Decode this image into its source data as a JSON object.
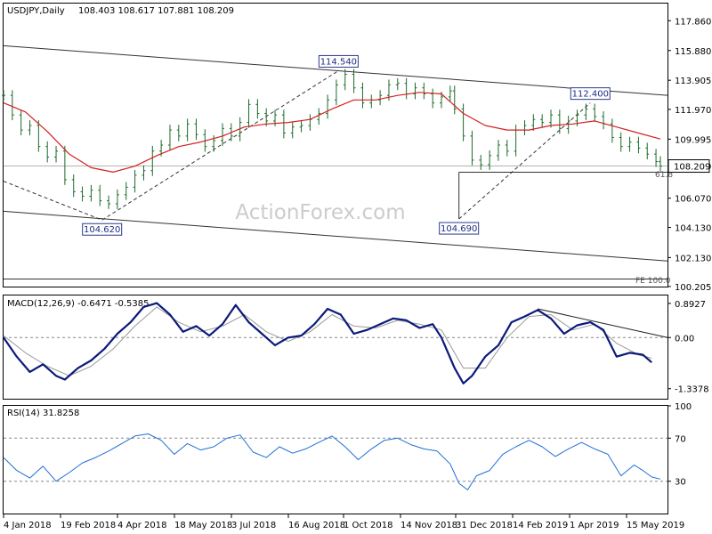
{
  "header": {
    "symbol_line": "USDJPY,Daily",
    "ohlc_line": "108.403 108.617 107.881 108.209"
  },
  "watermark": "ActionForex.com",
  "chart_data": {
    "type": "line",
    "x_ticks": [
      "4 Jan 2018",
      "19 Feb 2018",
      "4 Apr 2018",
      "18 May 2018",
      "3 Jul 2018",
      "16 Aug 2018",
      "1 Oct 2018",
      "14 Nov 2018",
      "31 Dec 2018",
      "14 Feb 2019",
      "1 Apr 2019",
      "15 May 2019"
    ],
    "price_panel": {
      "y_ticks": [
        "117.860",
        "115.880",
        "113.905",
        "111.970",
        "109.995",
        "108.209",
        "106.070",
        "104.130",
        "102.130",
        "100.205"
      ],
      "ylim": [
        100.2,
        119.0
      ],
      "last_price": 108.209,
      "close_points": [
        [
          0,
          112.9
        ],
        [
          4,
          111.6
        ],
        [
          8,
          110.6
        ],
        [
          12,
          110.9
        ],
        [
          16,
          109.5
        ],
        [
          20,
          108.8
        ],
        [
          24,
          109.2
        ],
        [
          28,
          107.3
        ],
        [
          32,
          106.5
        ],
        [
          36,
          106.2
        ],
        [
          40,
          106.6
        ],
        [
          44,
          105.9
        ],
        [
          48,
          105.7
        ],
        [
          52,
          106.3
        ],
        [
          56,
          106.8
        ],
        [
          60,
          107.6
        ],
        [
          64,
          107.9
        ],
        [
          68,
          109.2
        ],
        [
          72,
          109.6
        ],
        [
          76,
          110.6
        ],
        [
          80,
          110.2
        ],
        [
          84,
          111.0
        ],
        [
          88,
          110.3
        ],
        [
          92,
          109.5
        ],
        [
          96,
          109.9
        ],
        [
          100,
          110.7
        ],
        [
          104,
          110.2
        ],
        [
          108,
          111.1
        ],
        [
          112,
          112.3
        ],
        [
          116,
          111.7
        ],
        [
          120,
          111.2
        ],
        [
          124,
          111.6
        ],
        [
          128,
          110.4
        ],
        [
          132,
          110.8
        ],
        [
          136,
          110.9
        ],
        [
          140,
          111.3
        ],
        [
          144,
          111.7
        ],
        [
          148,
          112.6
        ],
        [
          152,
          113.6
        ],
        [
          156,
          114.3
        ],
        [
          160,
          113.4
        ],
        [
          164,
          112.4
        ],
        [
          168,
          112.6
        ],
        [
          172,
          112.9
        ],
        [
          176,
          113.6
        ],
        [
          180,
          113.7
        ],
        [
          184,
          113.0
        ],
        [
          188,
          113.4
        ],
        [
          192,
          113.0
        ],
        [
          196,
          112.4
        ],
        [
          200,
          112.8
        ],
        [
          204,
          113.2
        ],
        [
          206,
          112.0
        ],
        [
          210,
          110.2
        ],
        [
          214,
          108.6
        ],
        [
          218,
          108.3
        ],
        [
          222,
          108.9
        ],
        [
          226,
          109.6
        ],
        [
          230,
          109.2
        ],
        [
          234,
          110.6
        ],
        [
          238,
          110.9
        ],
        [
          242,
          111.3
        ],
        [
          246,
          111.1
        ],
        [
          250,
          111.6
        ],
        [
          254,
          110.7
        ],
        [
          258,
          111.2
        ],
        [
          262,
          111.6
        ],
        [
          266,
          112.0
        ],
        [
          270,
          111.5
        ],
        [
          274,
          111.0
        ],
        [
          278,
          110.1
        ],
        [
          282,
          109.5
        ],
        [
          286,
          109.8
        ],
        [
          290,
          109.4
        ],
        [
          294,
          109.0
        ],
        [
          298,
          108.5
        ],
        [
          300,
          108.2
        ]
      ],
      "ma_points": [
        [
          0,
          112.4
        ],
        [
          10,
          111.8
        ],
        [
          20,
          110.5
        ],
        [
          30,
          109.0
        ],
        [
          40,
          108.1
        ],
        [
          50,
          107.8
        ],
        [
          60,
          108.2
        ],
        [
          70,
          108.9
        ],
        [
          80,
          109.5
        ],
        [
          90,
          109.8
        ],
        [
          100,
          110.2
        ],
        [
          110,
          110.8
        ],
        [
          120,
          111.0
        ],
        [
          130,
          111.1
        ],
        [
          140,
          111.3
        ],
        [
          150,
          112.0
        ],
        [
          160,
          112.6
        ],
        [
          170,
          112.6
        ],
        [
          180,
          112.9
        ],
        [
          190,
          113.1
        ],
        [
          200,
          113.0
        ],
        [
          210,
          111.7
        ],
        [
          220,
          110.9
        ],
        [
          230,
          110.6
        ],
        [
          240,
          110.6
        ],
        [
          250,
          110.9
        ],
        [
          260,
          111.0
        ],
        [
          270,
          111.2
        ],
        [
          280,
          110.8
        ],
        [
          290,
          110.4
        ],
        [
          300,
          110.0
        ]
      ],
      "annotations": [
        {
          "label": "114.540",
          "day": 153,
          "value": 114.54
        },
        {
          "label": "104.620",
          "day": 45,
          "value": 104.62
        },
        {
          "label": "104.690",
          "day": 208,
          "value": 104.69
        },
        {
          "label": "112.400",
          "day": 268,
          "value": 112.4
        }
      ],
      "fib_label": "61.8",
      "fe_label": "FE 100.0"
    },
    "macd_panel": {
      "label": "MACD(12,26,9) -0.6471 -0.5385",
      "y_ticks": [
        "0.8927",
        "0.00",
        "-1.3378"
      ],
      "ylim": [
        -1.6,
        1.1
      ],
      "macd_points": [
        [
          0,
          0.0
        ],
        [
          6,
          -0.5
        ],
        [
          12,
          -0.9
        ],
        [
          18,
          -0.7
        ],
        [
          24,
          -1.0
        ],
        [
          28,
          -1.1
        ],
        [
          34,
          -0.8
        ],
        [
          40,
          -0.6
        ],
        [
          46,
          -0.3
        ],
        [
          52,
          0.1
        ],
        [
          58,
          0.4
        ],
        [
          64,
          0.8
        ],
        [
          70,
          0.9
        ],
        [
          76,
          0.6
        ],
        [
          82,
          0.15
        ],
        [
          88,
          0.3
        ],
        [
          94,
          0.05
        ],
        [
          100,
          0.35
        ],
        [
          106,
          0.85
        ],
        [
          112,
          0.4
        ],
        [
          118,
          0.1
        ],
        [
          124,
          -0.2
        ],
        [
          130,
          0.0
        ],
        [
          136,
          0.05
        ],
        [
          142,
          0.35
        ],
        [
          148,
          0.75
        ],
        [
          154,
          0.6
        ],
        [
          160,
          0.1
        ],
        [
          166,
          0.2
        ],
        [
          172,
          0.35
        ],
        [
          178,
          0.5
        ],
        [
          184,
          0.45
        ],
        [
          190,
          0.25
        ],
        [
          196,
          0.35
        ],
        [
          200,
          0.0
        ],
        [
          206,
          -0.8
        ],
        [
          210,
          -1.2
        ],
        [
          214,
          -1.0
        ],
        [
          220,
          -0.5
        ],
        [
          226,
          -0.2
        ],
        [
          232,
          0.4
        ],
        [
          238,
          0.55
        ],
        [
          244,
          0.72
        ],
        [
          250,
          0.5
        ],
        [
          256,
          0.1
        ],
        [
          262,
          0.32
        ],
        [
          268,
          0.4
        ],
        [
          274,
          0.2
        ],
        [
          280,
          -0.5
        ],
        [
          286,
          -0.4
        ],
        [
          292,
          -0.45
        ],
        [
          296,
          -0.65
        ]
      ],
      "signal_points": [
        [
          0,
          0.05
        ],
        [
          10,
          -0.4
        ],
        [
          20,
          -0.75
        ],
        [
          30,
          -1.0
        ],
        [
          40,
          -0.75
        ],
        [
          50,
          -0.3
        ],
        [
          60,
          0.3
        ],
        [
          70,
          0.8
        ],
        [
          80,
          0.4
        ],
        [
          90,
          0.15
        ],
        [
          100,
          0.3
        ],
        [
          110,
          0.6
        ],
        [
          120,
          0.15
        ],
        [
          130,
          -0.1
        ],
        [
          140,
          0.15
        ],
        [
          150,
          0.6
        ],
        [
          160,
          0.3
        ],
        [
          170,
          0.25
        ],
        [
          180,
          0.45
        ],
        [
          190,
          0.35
        ],
        [
          200,
          0.2
        ],
        [
          210,
          -0.8
        ],
        [
          220,
          -0.8
        ],
        [
          230,
          0.0
        ],
        [
          240,
          0.55
        ],
        [
          250,
          0.6
        ],
        [
          260,
          0.2
        ],
        [
          270,
          0.35
        ],
        [
          280,
          -0.15
        ],
        [
          290,
          -0.45
        ],
        [
          296,
          -0.54
        ]
      ]
    },
    "rsi_panel": {
      "label": "RSI(14) 31.8258",
      "y_ticks": [
        "100",
        "70",
        "30"
      ],
      "ylim": [
        0,
        100
      ],
      "rsi_points": [
        [
          0,
          52
        ],
        [
          6,
          40
        ],
        [
          12,
          33
        ],
        [
          18,
          44
        ],
        [
          24,
          30
        ],
        [
          30,
          38
        ],
        [
          36,
          47
        ],
        [
          42,
          52
        ],
        [
          48,
          58
        ],
        [
          54,
          65
        ],
        [
          60,
          72
        ],
        [
          66,
          74
        ],
        [
          72,
          68
        ],
        [
          78,
          55
        ],
        [
          84,
          65
        ],
        [
          90,
          59
        ],
        [
          96,
          62
        ],
        [
          102,
          70
        ],
        [
          108,
          73
        ],
        [
          114,
          57
        ],
        [
          120,
          52
        ],
        [
          126,
          62
        ],
        [
          132,
          56
        ],
        [
          138,
          60
        ],
        [
          144,
          66
        ],
        [
          150,
          72
        ],
        [
          156,
          62
        ],
        [
          162,
          50
        ],
        [
          168,
          60
        ],
        [
          174,
          68
        ],
        [
          180,
          70
        ],
        [
          186,
          64
        ],
        [
          192,
          60
        ],
        [
          198,
          58
        ],
        [
          204,
          46
        ],
        [
          208,
          28
        ],
        [
          212,
          22
        ],
        [
          216,
          35
        ],
        [
          222,
          40
        ],
        [
          228,
          55
        ],
        [
          234,
          62
        ],
        [
          240,
          68
        ],
        [
          246,
          62
        ],
        [
          252,
          53
        ],
        [
          258,
          60
        ],
        [
          264,
          66
        ],
        [
          270,
          60
        ],
        [
          276,
          55
        ],
        [
          282,
          35
        ],
        [
          288,
          45
        ],
        [
          292,
          40
        ],
        [
          296,
          34
        ],
        [
          300,
          32
        ]
      ]
    }
  }
}
